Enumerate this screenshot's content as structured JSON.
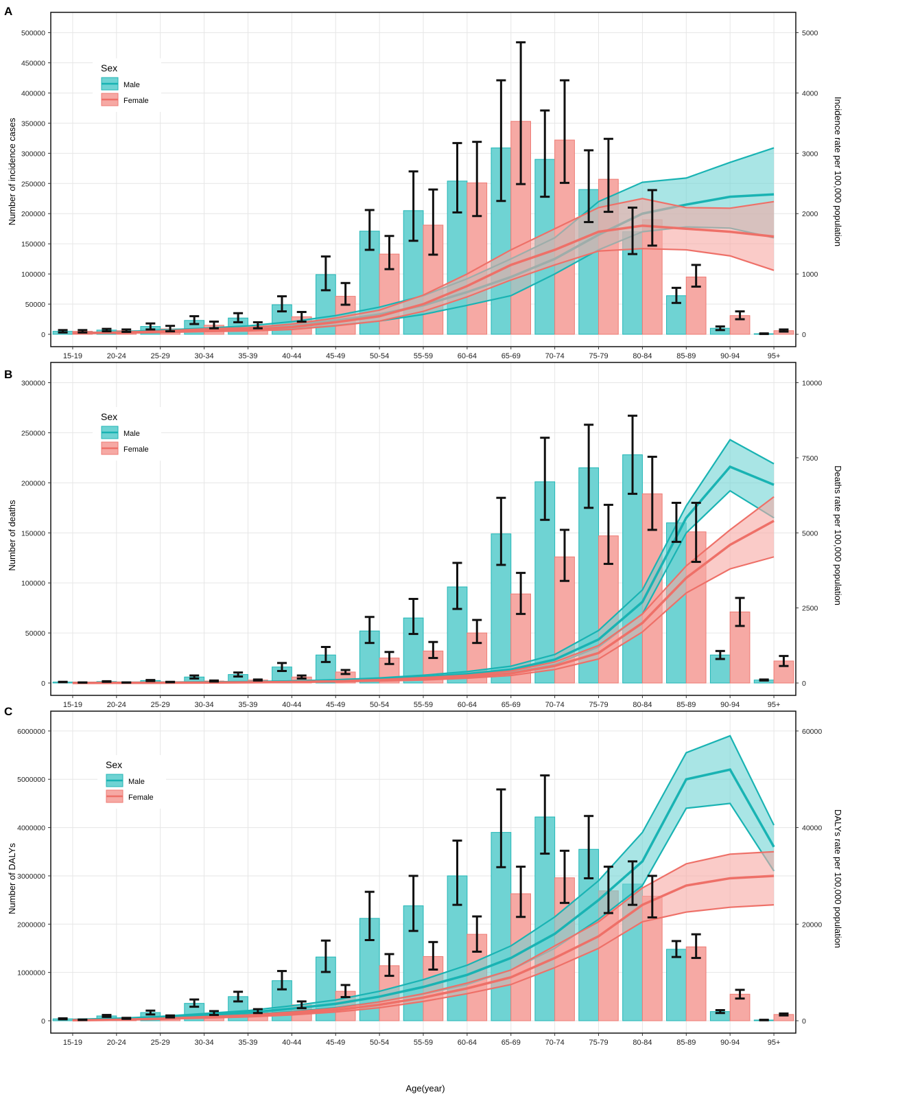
{
  "figure": {
    "x_axis_title": "Age(year)",
    "colors": {
      "male_bar": "#6fd3d3",
      "male_edge": "#21b6b6",
      "male_line": "#19b3b3",
      "female_bar": "#f6a9a4",
      "female_edge": "#ee7a73",
      "female_line": "#ee7068",
      "error_bar": "#111111",
      "grid": "#e6e6e6"
    }
  },
  "chart_data": [
    {
      "type": "bar",
      "panel_label": "A",
      "legend": {
        "title": "Sex",
        "entries": [
          "Male",
          "Female"
        ],
        "position": "top-left"
      },
      "categories": [
        "15-19",
        "20-24",
        "25-29",
        "30-34",
        "35-39",
        "40-44",
        "45-49",
        "50-54",
        "55-59",
        "60-64",
        "65-69",
        "70-74",
        "75-79",
        "80-84",
        "85-89",
        "90-94",
        "95+"
      ],
      "ylabel": "Number of incidence cases",
      "ylabel_right": "Incidence rate per 100,000 population",
      "ylim": [
        0,
        520000
      ],
      "yticks": [
        0,
        50000,
        100000,
        150000,
        200000,
        250000,
        300000,
        350000,
        400000,
        450000,
        500000
      ],
      "y2lim": [
        0,
        5200
      ],
      "y2ticks": [
        0,
        1000,
        2000,
        3000,
        4000,
        5000
      ],
      "series": [
        {
          "name": "Male",
          "kind": "bar",
          "values": [
            5000,
            7000,
            13000,
            23000,
            27000,
            49000,
            99000,
            171000,
            205000,
            254000,
            309000,
            290000,
            240000,
            170000,
            64000,
            10000,
            1000
          ],
          "lower": [
            3000,
            5000,
            8000,
            17000,
            20000,
            38000,
            73000,
            140000,
            155000,
            202000,
            221000,
            228000,
            186000,
            133000,
            52000,
            7000,
            500
          ],
          "upper": [
            7000,
            9000,
            18000,
            30000,
            35000,
            63000,
            129000,
            206000,
            270000,
            317000,
            421000,
            371000,
            305000,
            210000,
            77000,
            13000,
            1500
          ]
        },
        {
          "name": "Female",
          "kind": "bar",
          "values": [
            5000,
            6000,
            9000,
            15000,
            14000,
            29000,
            63000,
            133000,
            181000,
            251000,
            353000,
            322000,
            257000,
            190000,
            95000,
            31000,
            6000
          ],
          "lower": [
            3000,
            4000,
            5000,
            10000,
            10000,
            21000,
            49000,
            108000,
            132000,
            196000,
            249000,
            251000,
            203000,
            147000,
            79000,
            25000,
            4500
          ],
          "upper": [
            7000,
            8000,
            14000,
            21000,
            20000,
            37000,
            85000,
            163000,
            240000,
            319000,
            484000,
            421000,
            324000,
            239000,
            115000,
            38000,
            8000
          ]
        },
        {
          "name": "Male rate",
          "kind": "line",
          "values": [
            20,
            30,
            50,
            80,
            100,
            150,
            230,
            330,
            480,
            700,
            950,
            1250,
            1650,
            2000,
            2150,
            2280,
            2320
          ],
          "lower": [
            15,
            20,
            30,
            50,
            60,
            90,
            150,
            220,
            330,
            480,
            640,
            1000,
            1400,
            1700,
            1780,
            1760,
            1600
          ],
          "upper": [
            25,
            40,
            70,
            100,
            140,
            210,
            310,
            450,
            640,
            920,
            1250,
            1600,
            2200,
            2520,
            2590,
            2850,
            3090
          ]
        },
        {
          "name": "Female rate",
          "kind": "line",
          "values": [
            20,
            25,
            40,
            65,
            80,
            120,
            200,
            300,
            500,
            800,
            1150,
            1400,
            1700,
            1800,
            1750,
            1700,
            1620
          ],
          "lower": [
            15,
            20,
            30,
            45,
            55,
            80,
            140,
            220,
            380,
            620,
            900,
            1150,
            1380,
            1420,
            1400,
            1300,
            1060
          ],
          "upper": [
            25,
            35,
            55,
            90,
            110,
            170,
            270,
            400,
            650,
            1000,
            1400,
            1750,
            2100,
            2250,
            2100,
            2090,
            2200
          ]
        }
      ]
    },
    {
      "type": "bar",
      "panel_label": "B",
      "legend": {
        "title": "Sex",
        "entries": [
          "Male",
          "Female"
        ],
        "position": "top-left"
      },
      "categories": [
        "15-19",
        "20-24",
        "25-29",
        "30-34",
        "35-39",
        "40-44",
        "45-49",
        "50-54",
        "55-59",
        "60-64",
        "65-69",
        "70-74",
        "75-79",
        "80-84",
        "85-89",
        "90-94",
        "95+"
      ],
      "ylabel": "Number of deaths",
      "ylabel_right": "Deaths rate per 100,000 population",
      "ylim": [
        0,
        312000
      ],
      "yticks": [
        0,
        50000,
        100000,
        150000,
        200000,
        250000,
        300000
      ],
      "y2lim": [
        0,
        10400
      ],
      "y2ticks": [
        0,
        2500,
        5000,
        7500,
        10000
      ],
      "series": [
        {
          "name": "Male",
          "kind": "bar",
          "values": [
            1000,
            1500,
            2500,
            6000,
            8500,
            16000,
            28000,
            52000,
            65000,
            96000,
            149000,
            201000,
            215000,
            228000,
            160000,
            28000,
            3000
          ],
          "lower": [
            800,
            1200,
            2000,
            4500,
            6500,
            12000,
            21000,
            40000,
            49000,
            74000,
            118000,
            163000,
            175000,
            189000,
            141000,
            24000,
            2500
          ],
          "upper": [
            1200,
            1800,
            3000,
            7500,
            10500,
            20000,
            36000,
            66000,
            84000,
            120000,
            185000,
            245000,
            258000,
            267000,
            180000,
            32000,
            3500
          ]
        },
        {
          "name": "Female",
          "kind": "bar",
          "values": [
            500,
            500,
            1000,
            2000,
            3000,
            6000,
            11000,
            25000,
            32000,
            50000,
            89000,
            126000,
            147000,
            189000,
            151000,
            71000,
            22000
          ],
          "lower": [
            400,
            400,
            800,
            1500,
            2500,
            4500,
            9000,
            19000,
            25000,
            40000,
            69000,
            102000,
            119000,
            153000,
            121000,
            57000,
            17000
          ],
          "upper": [
            600,
            600,
            1200,
            2500,
            3500,
            7500,
            13000,
            31000,
            41000,
            63000,
            110000,
            153000,
            178000,
            226000,
            180000,
            85000,
            27000
          ]
        },
        {
          "name": "Male rate",
          "kind": "line",
          "values": [
            5,
            10,
            15,
            25,
            35,
            55,
            85,
            130,
            200,
            300,
            450,
            780,
            1450,
            2700,
            5500,
            7200,
            6600
          ],
          "lower": [
            3,
            7,
            10,
            18,
            25,
            40,
            60,
            95,
            150,
            230,
            350,
            620,
            1200,
            2300,
            5000,
            6400,
            5500
          ],
          "upper": [
            7,
            13,
            20,
            32,
            45,
            70,
            110,
            170,
            260,
            380,
            560,
            950,
            1750,
            3100,
            5900,
            8100,
            7300
          ]
        },
        {
          "name": "Female rate",
          "kind": "line",
          "values": [
            3,
            6,
            10,
            15,
            22,
            35,
            55,
            90,
            140,
            210,
            320,
            570,
            1000,
            2000,
            3500,
            4600,
            5400
          ],
          "lower": [
            2,
            4,
            7,
            10,
            16,
            25,
            40,
            65,
            100,
            160,
            250,
            450,
            800,
            1700,
            3000,
            3800,
            4200
          ],
          "upper": [
            4,
            8,
            13,
            20,
            28,
            45,
            70,
            115,
            180,
            260,
            400,
            700,
            1250,
            2300,
            3900,
            5100,
            6200
          ]
        }
      ]
    },
    {
      "type": "bar",
      "panel_label": "C",
      "legend": {
        "title": "Sex",
        "entries": [
          "Male",
          "Female"
        ],
        "position": "top-left"
      },
      "categories": [
        "15-19",
        "20-24",
        "25-29",
        "30-34",
        "35-39",
        "40-44",
        "45-49",
        "50-54",
        "55-59",
        "60-64",
        "65-69",
        "70-74",
        "75-79",
        "80-84",
        "85-89",
        "90-94",
        "95+"
      ],
      "ylabel": "Number of DALYs",
      "ylabel_right": "DALYs rate per 100,000 population",
      "xlabel": "Age(year)",
      "ylim": [
        0,
        6240000
      ],
      "yticks": [
        0,
        1000000,
        2000000,
        3000000,
        4000000,
        5000000,
        6000000
      ],
      "y2lim": [
        0,
        62400
      ],
      "y2ticks": [
        0,
        20000,
        40000,
        60000
      ],
      "series": [
        {
          "name": "Male",
          "kind": "bar",
          "values": [
            40000,
            100000,
            170000,
            360000,
            500000,
            830000,
            1320000,
            2120000,
            2380000,
            3000000,
            3900000,
            4220000,
            3550000,
            2830000,
            1480000,
            190000,
            15000
          ],
          "lower": [
            30000,
            80000,
            130000,
            290000,
            400000,
            650000,
            1010000,
            1670000,
            1860000,
            2400000,
            3180000,
            3460000,
            2950000,
            2400000,
            1320000,
            160000,
            10000
          ],
          "upper": [
            50000,
            120000,
            210000,
            440000,
            600000,
            1030000,
            1660000,
            2670000,
            3000000,
            3730000,
            4790000,
            5080000,
            4240000,
            3300000,
            1650000,
            220000,
            20000
          ]
        },
        {
          "name": "Female",
          "kind": "bar",
          "values": [
            20000,
            50000,
            90000,
            160000,
            200000,
            330000,
            610000,
            1140000,
            1330000,
            1790000,
            2630000,
            2960000,
            2690000,
            2580000,
            1530000,
            550000,
            130000
          ],
          "lower": [
            15000,
            40000,
            70000,
            120000,
            160000,
            260000,
            490000,
            930000,
            1060000,
            1430000,
            2150000,
            2440000,
            2230000,
            2140000,
            1300000,
            460000,
            110000
          ],
          "upper": [
            25000,
            60000,
            110000,
            200000,
            240000,
            400000,
            740000,
            1380000,
            1630000,
            2160000,
            3190000,
            3520000,
            3190000,
            3000000,
            1790000,
            640000,
            150000
          ]
        },
        {
          "name": "Male rate",
          "kind": "line",
          "values": [
            200,
            400,
            700,
            1200,
            1700,
            2500,
            3500,
            5000,
            7000,
            9500,
            13000,
            18000,
            25000,
            33000,
            50000,
            52000,
            36000
          ],
          "lower": [
            150,
            300,
            500,
            900,
            1300,
            1900,
            2700,
            3900,
            5500,
            7500,
            10500,
            15000,
            21000,
            28000,
            44000,
            45000,
            31000
          ],
          "upper": [
            250,
            500,
            900,
            1500,
            2100,
            3100,
            4300,
            6100,
            8500,
            11500,
            15500,
            21500,
            29000,
            39000,
            55500,
            59000,
            40500
          ]
        },
        {
          "name": "Female rate",
          "kind": "line",
          "values": [
            100,
            200,
            400,
            700,
            1000,
            1500,
            2200,
            3300,
            4800,
            6700,
            9000,
            13000,
            17500,
            24000,
            28000,
            29500,
            30000
          ],
          "lower": [
            80,
            150,
            300,
            550,
            800,
            1200,
            1800,
            2700,
            4000,
            5600,
            7500,
            11000,
            15000,
            20500,
            22500,
            23500,
            24000
          ],
          "upper": [
            120,
            250,
            500,
            850,
            1200,
            1800,
            2600,
            3900,
            5600,
            7800,
            10500,
            15500,
            20500,
            27500,
            32500,
            34500,
            35000
          ]
        }
      ]
    }
  ]
}
